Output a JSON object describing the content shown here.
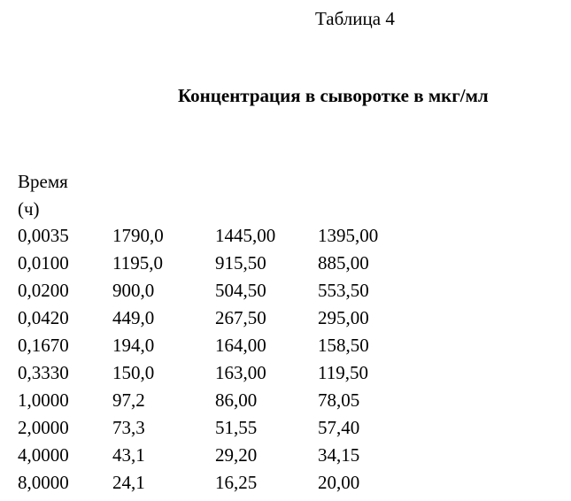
{
  "table_label": "Таблица 4",
  "heading": "Концентрация в сыворотке в мкг/мл",
  "time_header": [
    "Время",
    "(ч)"
  ],
  "rows": [
    [
      "0,0035",
      "1790,0",
      "1445,00",
      "1395,00"
    ],
    [
      "0,0100",
      "1195,0",
      "915,50",
      "885,00"
    ],
    [
      "0,0200",
      "900,0",
      "504,50",
      "553,50"
    ],
    [
      "0,0420",
      "449,0",
      "267,50",
      "295,00"
    ],
    [
      "0,1670",
      "194,0",
      "164,00",
      "158,50"
    ],
    [
      "0,3330",
      "150,0",
      "163,00",
      "119,50"
    ],
    [
      "1,0000",
      "97,2",
      "86,00",
      "78,05"
    ],
    [
      "2,0000",
      "73,3",
      "51,55",
      "57,40"
    ],
    [
      "4,0000",
      "43,1",
      "29,20",
      "34,15"
    ],
    [
      "8,0000",
      "24,1",
      "16,25",
      "20,00"
    ]
  ]
}
